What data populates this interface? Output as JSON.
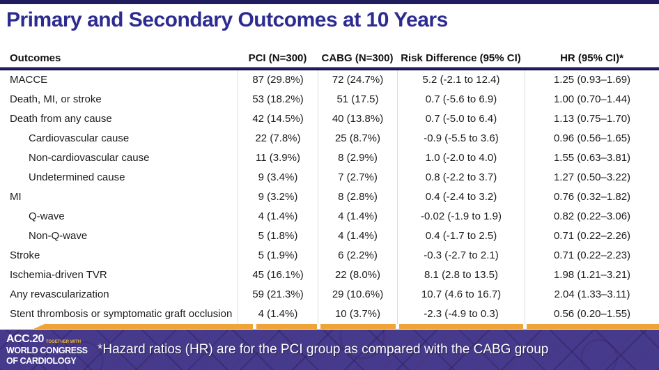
{
  "slide": {
    "title": "Primary and Secondary Outcomes at 10 Years"
  },
  "table": {
    "columns": [
      "Outcomes",
      "PCI (N=300)",
      "CABG (N=300)",
      "Risk Difference (95% CI)",
      "HR (95% CI)*"
    ],
    "rows": [
      {
        "label": "MACCE",
        "pci": "87 (29.8%)",
        "cabg": "72 (24.7%)",
        "risk_diff": "5.2 (-2.1 to 12.4)",
        "hr": "1.25 (0.93–1.69)"
      },
      {
        "label": "Death, MI, or stroke",
        "pci": "53 (18.2%)",
        "cabg": "51 (17.5)",
        "risk_diff": "0.7 (-5.6 to 6.9)",
        "hr": "1.00 (0.70–1.44)"
      },
      {
        "label": "Death from any cause",
        "pci": "42 (14.5%)",
        "cabg": "40 (13.8%)",
        "risk_diff": "0.7 (-5.0 to 6.4)",
        "hr": "1.13 (0.75–1.70)"
      },
      {
        "label": "Cardiovascular cause",
        "pci": "22 (7.8%)",
        "cabg": "25 (8.7%)",
        "risk_diff": "-0.9 (-5.5 to 3.6)",
        "hr": "0.96 (0.56–1.65)"
      },
      {
        "label": "Non-cardiovascular cause",
        "pci": "11 (3.9%)",
        "cabg": "8 (2.9%)",
        "risk_diff": "1.0 (-2.0 to 4.0)",
        "hr": "1.55 (0.63–3.81)"
      },
      {
        "label": "Undetermined cause",
        "pci": "9 (3.4%)",
        "cabg": "7 (2.7%)",
        "risk_diff": "0.8 (-2.2 to 3.7)",
        "hr": "1.27 (0.50–3.22)"
      },
      {
        "label": "MI",
        "pci": "9 (3.2%)",
        "cabg": "8 (2.8%)",
        "risk_diff": "0.4 (-2.4 to 3.2)",
        "hr": "0.76 (0.32–1.82)"
      },
      {
        "label": "Q-wave",
        "pci": "4 (1.4%)",
        "cabg": "4 (1.4%)",
        "risk_diff": "-0.02 (-1.9 to 1.9)",
        "hr": "0.82 (0.22–3.06)"
      },
      {
        "label": "Non-Q-wave",
        "pci": "5 (1.8%)",
        "cabg": "4 (1.4%)",
        "risk_diff": "0.4 (-1.7 to 2.5)",
        "hr": "0.71 (0.22–2.26)"
      },
      {
        "label": "Stroke",
        "pci": "5 (1.9%)",
        "cabg": "6 (2.2%)",
        "risk_diff": "-0.3 (-2.7 to 2.1)",
        "hr": "0.71 (0.22–2.23)"
      },
      {
        "label": "Ischemia-driven TVR",
        "pci": "45 (16.1%)",
        "cabg": "22 (8.0%)",
        "risk_diff": "8.1 (2.8 to 13.5)",
        "hr": "1.98 (1.21–3.21)"
      },
      {
        "label": "Any revascularization",
        "pci": "59 (21.3%)",
        "cabg": "29 (10.6%)",
        "risk_diff": "10.7 (4.6 to 16.7)",
        "hr": "2.04 (1.33–3.11)"
      },
      {
        "label": "Stent thrombosis or symptomatic graft occlusion",
        "pci": "4 (1.4%)",
        "cabg": "10 (3.7%)",
        "risk_diff": "-2.3 (-4.9 to 0.3)",
        "hr": "0.56 (0.20–1.55)"
      }
    ]
  },
  "footer": {
    "note": "*Hazard ratios (HR) are for the PCI group as compared with the CABG group",
    "logo": {
      "acc": "ACC.20",
      "tagline": "TOGETHER WITH",
      "line2": "WORLD CONGRESS",
      "line3": "OF CARDIOLOGY"
    }
  },
  "colors": {
    "title_blue": "#2d2b8f",
    "rule_navy": "#191552",
    "accent_orange": "#f0a437",
    "footer_purple": "#453a8c"
  }
}
